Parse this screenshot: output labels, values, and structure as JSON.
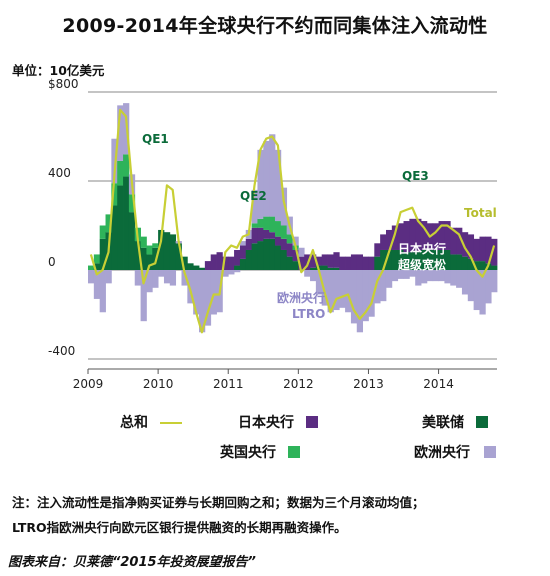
{
  "title": "2009-2014年全球央行不约而同集体注入流动性",
  "unit_label": "单位：10亿美元",
  "legend": {
    "total": "总和",
    "boj": "日本央行",
    "fed": "美联储",
    "boe": "英国央行",
    "ecb": "欧洲央行"
  },
  "colors": {
    "fed": "#0b6b3a",
    "boj": "#5b2d82",
    "boe": "#2eb35a",
    "ecb": "#a9a3d2",
    "total": "#c8cf35",
    "ann_qe": "#0b6b3a",
    "ann_ltro": "#8d86c6",
    "ann_boj": "#ffffff",
    "ann_total": "#b6bd2e"
  },
  "annotations": {
    "qe1": "QE1",
    "qe2": "QE2",
    "qe3": "QE3",
    "total": "Total",
    "boj_line1": "日本央行",
    "boj_line2": "超级宽松",
    "ltro_line1": "欧洲央行",
    "ltro_line2": "LTRO"
  },
  "note_line1": "注：注入流动性是指净购买证券与长期回购之和；数据为三个月滚动均值；",
  "note_line2": "LTRO指欧洲央行向欧元区银行提供融资的长期再融资操作。",
  "source": "图表来自：贝莱德“2015年投资展望报告”",
  "chart_data": {
    "type": "bar",
    "stacked": true,
    "y_ticks": [
      "$800",
      "400",
      "0",
      "-400"
    ],
    "y_tick_values": [
      800,
      400,
      0,
      -400
    ],
    "x_ticks": [
      "2009",
      "2010",
      "2011",
      "2012",
      "2013",
      "2014"
    ],
    "ylim": [
      -400,
      800
    ],
    "xlim": [
      "2009-01",
      "2014-10"
    ],
    "grid": true,
    "legend_position": "bottom",
    "series": [
      {
        "name": "美联储",
        "key": "fed",
        "values": [
          0,
          30,
          140,
          170,
          290,
          380,
          420,
          260,
          130,
          100,
          70,
          100,
          180,
          170,
          160,
          120,
          60,
          30,
          20,
          10,
          0,
          0,
          0,
          0,
          0,
          20,
          50,
          90,
          120,
          130,
          140,
          140,
          110,
          90,
          60,
          40,
          0,
          0,
          10,
          20,
          20,
          10,
          10,
          0,
          0,
          0,
          0,
          0,
          0,
          60,
          90,
          90,
          90,
          90,
          80,
          80,
          80,
          90,
          90,
          90,
          90,
          90,
          70,
          70,
          60,
          50,
          40,
          40,
          30,
          20
        ]
      },
      {
        "name": "日本央行",
        "key": "boj",
        "values": [
          0,
          0,
          0,
          0,
          0,
          0,
          0,
          0,
          0,
          0,
          0,
          0,
          0,
          0,
          0,
          0,
          0,
          0,
          0,
          0,
          40,
          70,
          80,
          60,
          60,
          70,
          60,
          50,
          70,
          60,
          40,
          30,
          40,
          50,
          60,
          50,
          60,
          70,
          60,
          40,
          50,
          60,
          70,
          60,
          60,
          70,
          70,
          60,
          60,
          60,
          70,
          90,
          110,
          120,
          140,
          150,
          150,
          130,
          120,
          120,
          130,
          130,
          120,
          120,
          110,
          110,
          100,
          110,
          120,
          120
        ]
      },
      {
        "name": "英国央行",
        "key": "boe",
        "values": [
          20,
          40,
          60,
          80,
          100,
          110,
          100,
          80,
          60,
          50,
          40,
          20,
          0,
          0,
          0,
          0,
          0,
          0,
          0,
          0,
          0,
          0,
          0,
          0,
          0,
          0,
          0,
          0,
          20,
          40,
          60,
          70,
          70,
          60,
          40,
          20,
          0,
          0,
          0,
          0,
          0,
          0,
          0,
          0,
          0,
          0,
          0,
          0,
          0,
          0,
          0,
          0,
          0,
          0,
          0,
          0,
          0,
          0,
          0,
          0,
          0,
          0,
          0,
          0,
          0,
          0,
          0,
          0,
          0,
          0
        ]
      },
      {
        "name": "欧洲央行",
        "key": "ecb",
        "values": [
          -60,
          -130,
          -190,
          -60,
          200,
          250,
          230,
          90,
          -70,
          -230,
          -100,
          -80,
          -30,
          -60,
          -70,
          10,
          -70,
          -150,
          -200,
          -280,
          -250,
          -200,
          -190,
          -30,
          -20,
          -10,
          20,
          40,
          150,
          310,
          340,
          370,
          320,
          170,
          80,
          40,
          40,
          -30,
          -50,
          -110,
          -160,
          -190,
          -180,
          -170,
          -190,
          -240,
          -280,
          -230,
          -210,
          -150,
          -140,
          -80,
          -50,
          -40,
          -40,
          -30,
          -70,
          -60,
          -50,
          -50,
          -50,
          -60,
          -70,
          -80,
          -110,
          -140,
          -180,
          -200,
          -150,
          -100
        ]
      }
    ],
    "total": [
      70,
      -20,
      0,
      80,
      420,
      720,
      690,
      400,
      140,
      -60,
      20,
      30,
      130,
      380,
      360,
      130,
      -10,
      -90,
      -190,
      -280,
      -190,
      -110,
      -110,
      80,
      110,
      100,
      150,
      160,
      380,
      540,
      590,
      600,
      560,
      310,
      200,
      110,
      -10,
      20,
      90,
      0,
      -100,
      -190,
      -130,
      -120,
      -110,
      -180,
      -220,
      -190,
      -150,
      -50,
      0,
      80,
      160,
      260,
      270,
      280,
      220,
      190,
      150,
      170,
      200,
      200,
      180,
      160,
      100,
      60,
      0,
      -30,
      20,
      110
    ]
  }
}
